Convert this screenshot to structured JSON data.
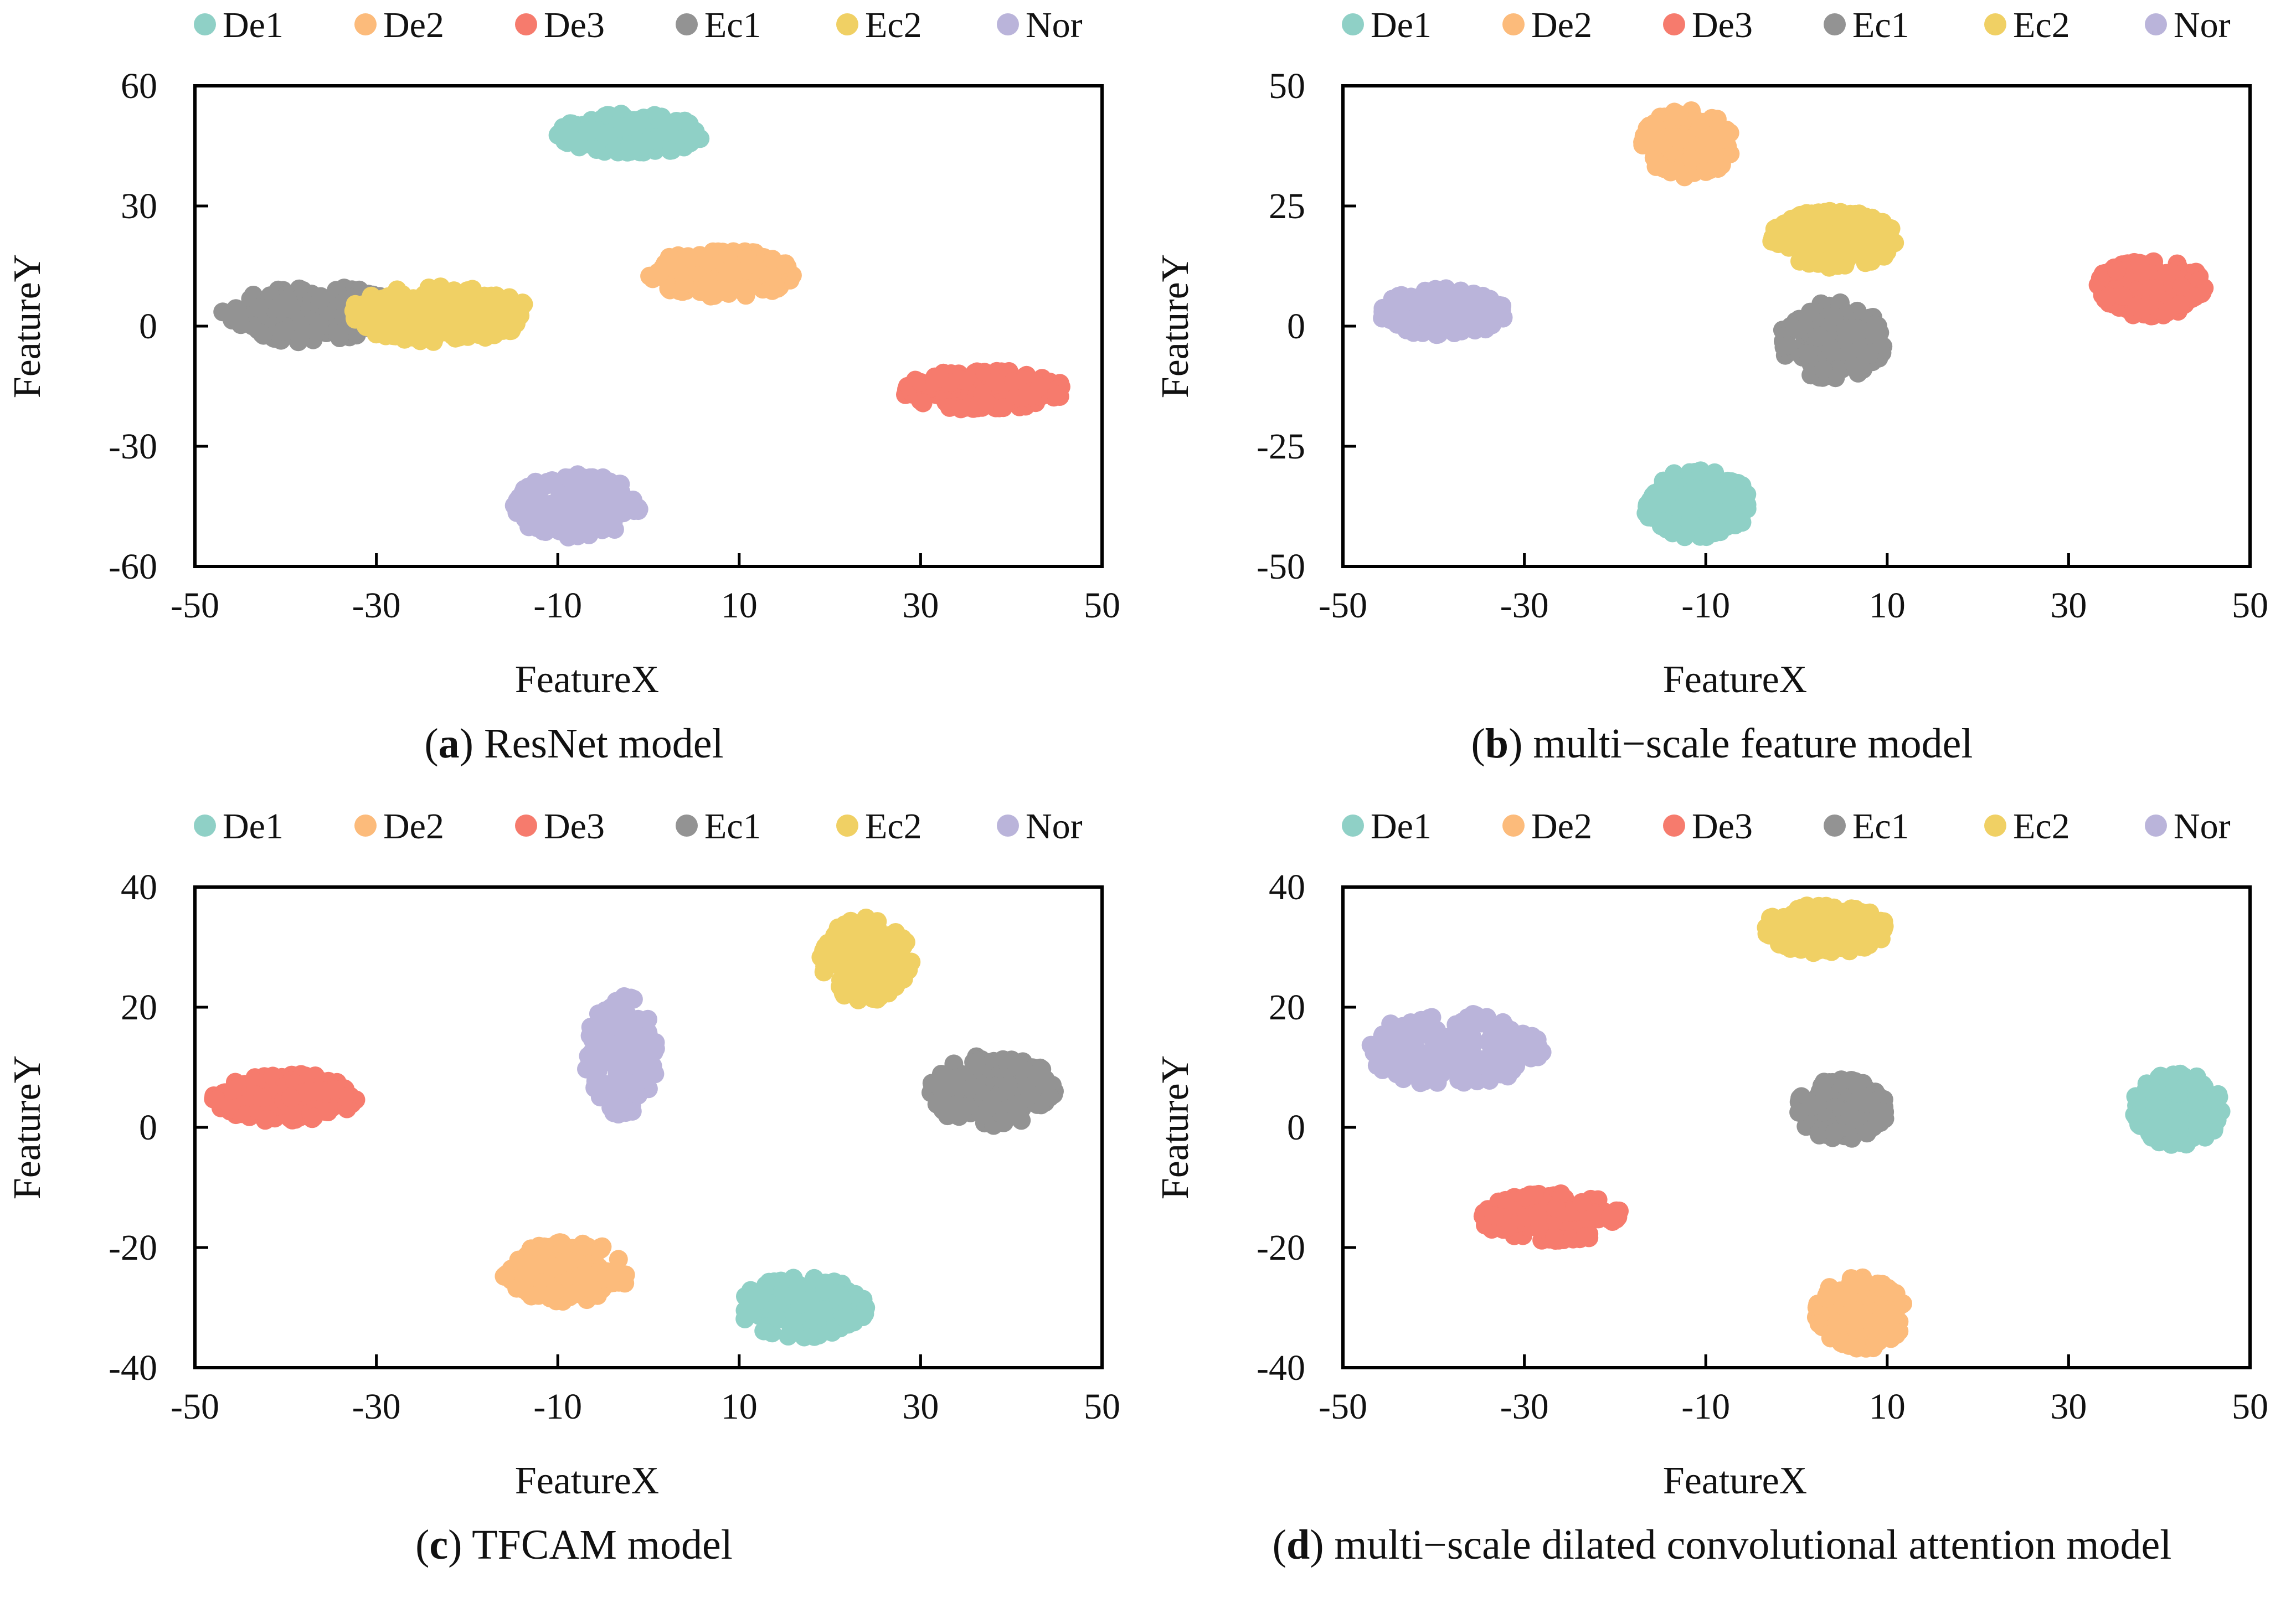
{
  "colors": {
    "De1": "#8fd0c6",
    "De2": "#fcbb7b",
    "De3": "#f67b6d",
    "Ec1": "#939393",
    "Ec2": "#f0d064",
    "Nor": "#bab4da"
  },
  "legend_labels": [
    "De1",
    "De2",
    "De3",
    "Ec1",
    "Ec2",
    "Nor"
  ],
  "chart_data": [
    {
      "type": "scatter",
      "panel_letter": "a",
      "caption": "ResNet model",
      "xlabel": "FeatureX",
      "ylabel": "FeatureY",
      "xlim": [
        -50,
        50
      ],
      "ylim": [
        -60,
        60
      ],
      "xticks": [
        -50,
        -30,
        -10,
        10,
        30,
        50
      ],
      "yticks": [
        60,
        30,
        0,
        -30,
        -60
      ],
      "xtick_labels": [
        "-50",
        "-30",
        "-10",
        "10",
        "30",
        "50"
      ],
      "ytick_labels": [
        "60",
        "30",
        "0",
        "-30",
        "-60"
      ],
      "clusters": [
        {
          "name": "De1",
          "cx": -2,
          "cy": 48,
          "rx": 8,
          "ry": 5
        },
        {
          "name": "De2",
          "cx": 8,
          "cy": 13,
          "rx": 8,
          "ry": 6
        },
        {
          "name": "De3",
          "cx": 37,
          "cy": -16,
          "rx": 9,
          "ry": 5
        },
        {
          "name": "Ec1",
          "cx": -37,
          "cy": 3,
          "rx": 10,
          "ry": 7
        },
        {
          "name": "Ec2",
          "cx": -23,
          "cy": 3,
          "rx": 10,
          "ry": 7
        },
        {
          "name": "Nor",
          "cx": -8,
          "cy": -45,
          "rx": 7,
          "ry": 8
        }
      ]
    },
    {
      "type": "scatter",
      "panel_letter": "b",
      "caption": "multi−scale feature model",
      "xlabel": "FeatureX",
      "ylabel": "FeatureY",
      "xlim": [
        -50,
        50
      ],
      "ylim": [
        -50,
        50
      ],
      "xticks": [
        -50,
        -30,
        -10,
        10,
        30,
        50
      ],
      "yticks": [
        50,
        25,
        0,
        -25,
        -50
      ],
      "xtick_labels": [
        "-50",
        "-30",
        "-10",
        "10",
        "30",
        "50"
      ],
      "ytick_labels": [
        "50",
        "25",
        "0",
        "-25",
        "-50"
      ],
      "clusters": [
        {
          "name": "De1",
          "cx": -11,
          "cy": -37,
          "rx": 6,
          "ry": 7
        },
        {
          "name": "De2",
          "cx": -12,
          "cy": 38,
          "rx": 5,
          "ry": 7
        },
        {
          "name": "De3",
          "cx": 39,
          "cy": 8,
          "rx": 6,
          "ry": 6
        },
        {
          "name": "Ec1",
          "cx": 4,
          "cy": -3,
          "rx": 6,
          "ry": 8
        },
        {
          "name": "Ec2",
          "cx": 4,
          "cy": 18,
          "rx": 7,
          "ry": 6
        },
        {
          "name": "Nor",
          "cx": -39,
          "cy": 3,
          "rx": 7,
          "ry": 5
        }
      ]
    },
    {
      "type": "scatter",
      "panel_letter": "c",
      "caption": "TFCAM model",
      "xlabel": "FeatureX",
      "ylabel": "FeatureY",
      "xlim": [
        -50,
        50
      ],
      "ylim": [
        -40,
        40
      ],
      "xticks": [
        -50,
        -30,
        -10,
        10,
        30,
        50
      ],
      "yticks": [
        40,
        20,
        0,
        -20,
        -40
      ],
      "xtick_labels": [
        "-50",
        "-30",
        "-10",
        "10",
        "30",
        "50"
      ],
      "ytick_labels": [
        "40",
        "20",
        "0",
        "-20",
        "-40"
      ],
      "clusters": [
        {
          "name": "De1",
          "cx": 17,
          "cy": -30,
          "rx": 7,
          "ry": 5
        },
        {
          "name": "De2",
          "cx": -9,
          "cy": -24,
          "rx": 7,
          "ry": 5
        },
        {
          "name": "De3",
          "cx": -40,
          "cy": 5,
          "rx": 8,
          "ry": 4
        },
        {
          "name": "Ec1",
          "cx": 38,
          "cy": 6,
          "rx": 7,
          "ry": 6
        },
        {
          "name": "Ec2",
          "cx": 24,
          "cy": 28,
          "rx": 5,
          "ry": 7
        },
        {
          "name": "Nor",
          "cx": -3,
          "cy": 12,
          "rx": 4,
          "ry": 10
        }
      ]
    },
    {
      "type": "scatter",
      "panel_letter": "d",
      "caption": "multi−scale dilated convolutional attention model",
      "xlabel": "FeatureX",
      "ylabel": "FeatureY",
      "xlim": [
        -50,
        50
      ],
      "ylim": [
        -40,
        40
      ],
      "xticks": [
        -50,
        -30,
        -10,
        10,
        30,
        50
      ],
      "yticks": [
        40,
        20,
        0,
        -20,
        -40
      ],
      "xtick_labels": [
        "-50",
        "-30",
        "-10",
        "10",
        "30",
        "50"
      ],
      "ytick_labels": [
        "40",
        "20",
        "0",
        "-20",
        "-40"
      ],
      "clusters": [
        {
          "name": "De1",
          "cx": 42,
          "cy": 3,
          "rx": 5,
          "ry": 6
        },
        {
          "name": "De2",
          "cx": 7,
          "cy": -31,
          "rx": 5,
          "ry": 6
        },
        {
          "name": "De3",
          "cx": -27,
          "cy": -15,
          "rx": 8,
          "ry": 4
        },
        {
          "name": "Ec1",
          "cx": 5,
          "cy": 3,
          "rx": 5,
          "ry": 5
        },
        {
          "name": "Ec2",
          "cx": 3,
          "cy": 33,
          "rx": 7,
          "ry": 4
        },
        {
          "name": "Nor",
          "cx": -38,
          "cy": 13,
          "rx": 10,
          "ry": 6
        }
      ]
    }
  ]
}
